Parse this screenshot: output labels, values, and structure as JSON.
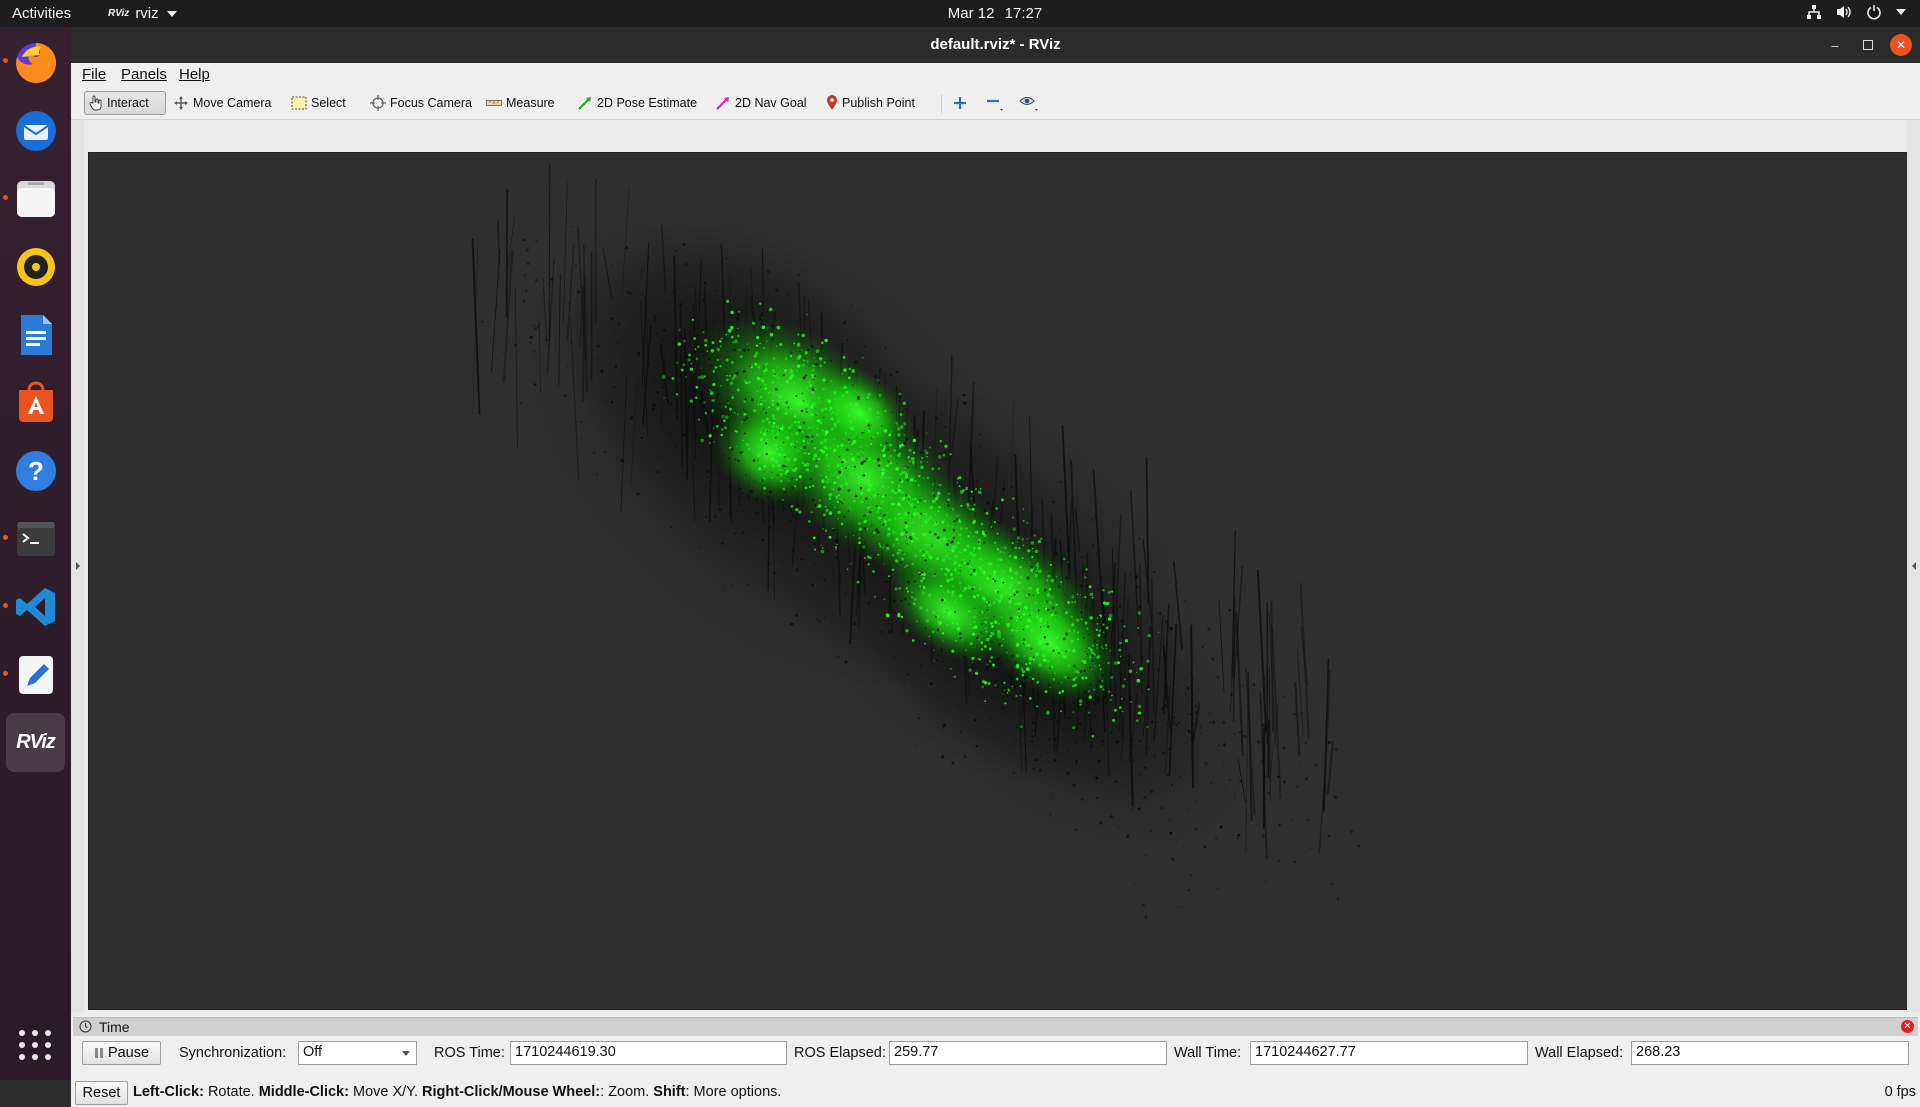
{
  "topbar": {
    "activities": "Activities",
    "app_name": "rviz",
    "app_icon_text": "RViz",
    "date": "Mar 12",
    "time": "17:27"
  },
  "dock": {
    "items": [
      "firefox",
      "thunderbird",
      "files",
      "rhythmbox",
      "libreoffice-writer",
      "app-center",
      "help",
      "terminal",
      "vscode",
      "text-editor",
      "rviz"
    ],
    "rviz_label": "RViz"
  },
  "window": {
    "title": "default.rviz* - RViz",
    "menu": [
      "File",
      "Panels",
      "Help"
    ]
  },
  "toolbar": {
    "interact": "Interact",
    "move_camera": "Move Camera",
    "select": "Select",
    "focus_camera": "Focus Camera",
    "measure": "Measure",
    "pose_estimate": "2D Pose Estimate",
    "nav_goal": "2D Nav Goal",
    "publish_point": "Publish Point"
  },
  "viewport": {
    "background": "#2f2f2f",
    "point_color": "#22ff22"
  },
  "time_panel": {
    "title": "Time",
    "pause": "Pause",
    "sync_label": "Synchronization:",
    "sync_value": "Off",
    "ros_time_label": "ROS Time:",
    "ros_time": "1710244619.30",
    "ros_elapsed_label": "ROS Elapsed:",
    "ros_elapsed": "259.77",
    "wall_time_label": "Wall Time:",
    "wall_time": "1710244627.77",
    "wall_elapsed_label": "Wall Elapsed:",
    "wall_elapsed": "268.23"
  },
  "statusbar": {
    "reset": "Reset",
    "left_click": "Left-Click:",
    "left_click_desc": "Rotate.",
    "middle_click": "Middle-Click:",
    "middle_click_desc": "Move X/Y.",
    "right_click": "Right-Click/Mouse Wheel:",
    "right_click_desc": ": Zoom.",
    "shift": "Shift",
    "shift_desc": ": More options.",
    "fps": "0 fps"
  }
}
